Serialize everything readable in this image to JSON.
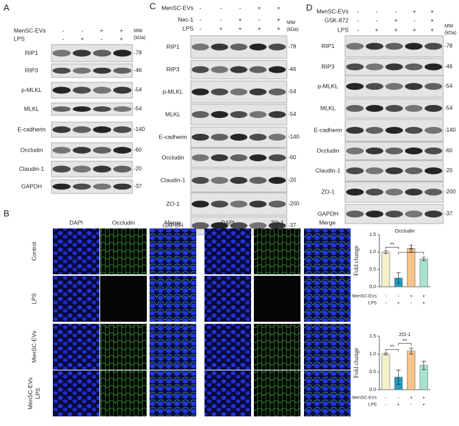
{
  "panel_a": {
    "label": "A",
    "mw_header": "MW",
    "mw_unit": "(kDa)",
    "conditions": [
      {
        "name": "MenSC-EVs",
        "signs": [
          "-",
          "-",
          "+",
          "+"
        ]
      },
      {
        "name": "LPS",
        "signs": [
          "-",
          "+",
          "-",
          "+"
        ]
      }
    ],
    "blots": [
      {
        "name": "RIP1",
        "mw": "-78"
      },
      {
        "name": "RIP3",
        "mw": "-46"
      },
      {
        "name": "p-MLKL",
        "mw": "-54"
      },
      {
        "name": "MLKL",
        "mw": "-54"
      },
      {
        "name": "E-cadherin",
        "mw": "-140"
      },
      {
        "name": "Occludin",
        "mw": "-60"
      },
      {
        "name": "Claudin-1",
        "mw": "-20"
      },
      {
        "name": "GAPDH",
        "mw": "-37"
      }
    ]
  },
  "panel_c": {
    "label": "C",
    "mw_header": "MW",
    "mw_unit": "(kDa)",
    "conditions": [
      {
        "name": "MenSC-EVs",
        "signs": [
          "-",
          "-",
          "-",
          "+",
          "+"
        ]
      },
      {
        "name": "Nec-1",
        "signs": [
          "-",
          "-",
          "+",
          "-",
          "+"
        ]
      },
      {
        "name": "LPS",
        "signs": [
          "-",
          "+",
          "+",
          "+",
          "+"
        ]
      }
    ],
    "blots": [
      {
        "name": "RIP1",
        "mw": "-78"
      },
      {
        "name": "RIP3",
        "mw": "-46"
      },
      {
        "name": "p-MLKL",
        "mw": "-54"
      },
      {
        "name": "MLKL",
        "mw": "-54"
      },
      {
        "name": "E-cadherin",
        "mw": "-140"
      },
      {
        "name": "Occludin",
        "mw": "-60"
      },
      {
        "name": "Claudin-1",
        "mw": "-20"
      },
      {
        "name": "ZO-1",
        "mw": "-200"
      },
      {
        "name": "GAPDH",
        "mw": "-37"
      }
    ]
  },
  "panel_d": {
    "label": "D",
    "mw_header": "MW",
    "mw_unit": "(kDa)",
    "conditions": [
      {
        "name": "MenSC-EVs",
        "signs": [
          "-",
          "-",
          "-",
          "+",
          "+"
        ]
      },
      {
        "name": "GSK-872",
        "signs": [
          "-",
          "-",
          "+",
          "-",
          "+"
        ]
      },
      {
        "name": "LPS",
        "signs": [
          "-",
          "+",
          "+",
          "+",
          "+"
        ]
      }
    ],
    "blots": [
      {
        "name": "RIP1",
        "mw": "-78"
      },
      {
        "name": "RIP3",
        "mw": "-46"
      },
      {
        "name": "p-MLKL",
        "mw": "-54"
      },
      {
        "name": "MLKL",
        "mw": "-54"
      },
      {
        "name": "E-cadherin",
        "mw": "-140"
      },
      {
        "name": "Occludin",
        "mw": "-60"
      },
      {
        "name": "Claudin-1",
        "mw": "-20"
      },
      {
        "name": "ZO-1",
        "mw": "-200"
      },
      {
        "name": "GAPDH",
        "mw": "-37"
      }
    ]
  },
  "panel_b": {
    "label": "B",
    "columns": [
      "DAPI",
      "Occludin",
      "Merge",
      "DAPI",
      "ZO-1",
      "Merge"
    ],
    "rows": [
      [
        "Control"
      ],
      [
        "LPS"
      ],
      [
        "MenSC-EVs"
      ],
      [
        "MenSC-EVs",
        "LPS"
      ]
    ]
  },
  "chart_data": [
    {
      "type": "bar",
      "title": "Occludin",
      "ylabel": "Fold change",
      "values": [
        1.0,
        0.25,
        1.1,
        0.8
      ],
      "errors": [
        0.04,
        0.15,
        0.1,
        0.05
      ],
      "colors": [
        "#f3f0c8",
        "#2a9bb8",
        "#f6c48c",
        "#a9e2d1"
      ],
      "ylim": [
        0,
        1.5
      ],
      "yticks": [
        {
          "value": 0,
          "label": "0.0"
        },
        {
          "value": 0.5,
          "label": "0.5"
        },
        {
          "value": 1,
          "label": "1.0"
        },
        {
          "value": 1.5,
          "label": "1.5"
        }
      ],
      "conditions": [
        {
          "name": "MenSC-EVs",
          "signs": [
            "-",
            "-",
            "+",
            "+"
          ]
        },
        {
          "name": "LPS",
          "signs": [
            "-",
            "+",
            "-",
            "+"
          ]
        }
      ],
      "significance": [
        {
          "pair": [
            0,
            1
          ],
          "label": "**"
        },
        {
          "pair": [
            1,
            3
          ],
          "label": "**"
        }
      ]
    },
    {
      "type": "bar",
      "title": "ZO-1",
      "ylabel": "Fold change",
      "values": [
        1.0,
        0.35,
        1.08,
        0.68
      ],
      "errors": [
        0.03,
        0.2,
        0.08,
        0.12
      ],
      "colors": [
        "#f3f0c8",
        "#2a9bb8",
        "#f6c48c",
        "#a9e2d1"
      ],
      "ylim": [
        0,
        1.5
      ],
      "yticks": [
        {
          "value": 0,
          "label": "0.0"
        },
        {
          "value": 0.5,
          "label": "0.5"
        },
        {
          "value": 1,
          "label": "1.0"
        },
        {
          "value": 1.5,
          "label": "1.5"
        }
      ],
      "conditions": [
        {
          "name": "MenSC-EVs",
          "signs": [
            "-",
            "-",
            "+",
            "+"
          ]
        },
        {
          "name": "LPS",
          "signs": [
            "-",
            "+",
            "-",
            "+"
          ]
        }
      ],
      "significance": [
        {
          "pair": [
            0,
            1
          ],
          "label": "**"
        },
        {
          "pair": [
            1,
            2
          ],
          "label": "**"
        }
      ]
    }
  ]
}
